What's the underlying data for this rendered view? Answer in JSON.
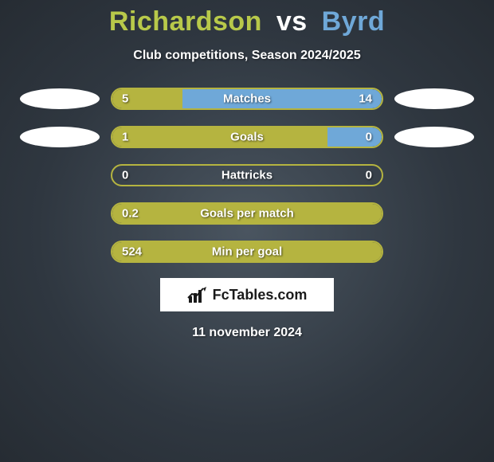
{
  "title": {
    "player1": "Richardson",
    "vs": "vs",
    "player2": "Byrd"
  },
  "subtitle": "Club competitions, Season 2024/2025",
  "colors": {
    "player1": "#b5b440",
    "player2": "#6fa8d8",
    "barBorder": "#b5b440",
    "title_p1": "#b8c94a",
    "title_p2": "#6fa8d8"
  },
  "rows": [
    {
      "label": "Matches",
      "left": "5",
      "right": "14",
      "leftPct": 26,
      "rightPct": 74,
      "showEllipses": true
    },
    {
      "label": "Goals",
      "left": "1",
      "right": "0",
      "leftPct": 80,
      "rightPct": 20,
      "showEllipses": true
    },
    {
      "label": "Hattricks",
      "left": "0",
      "right": "0",
      "leftPct": 0,
      "rightPct": 0,
      "showEllipses": false
    },
    {
      "label": "Goals per match",
      "left": "0.2",
      "right": "",
      "leftPct": 100,
      "rightPct": 0,
      "showEllipses": false
    },
    {
      "label": "Min per goal",
      "left": "524",
      "right": "",
      "leftPct": 100,
      "rightPct": 0,
      "showEllipses": false
    }
  ],
  "logo": "FcTables.com",
  "date": "11 november 2024"
}
